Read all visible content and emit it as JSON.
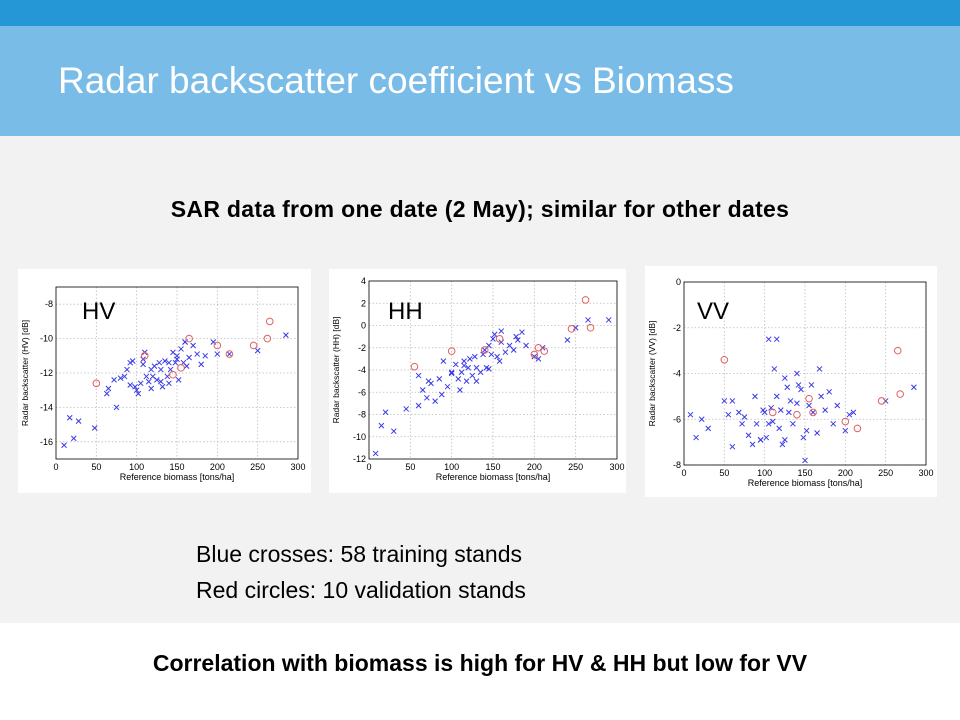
{
  "slide": {
    "title": "Radar backscatter coefficient vs Biomass",
    "subtitle": "SAR data from one date (2 May); similar for other dates",
    "legend": [
      "Blue crosses: 58 training stands",
      "Red circles: 10 validation stands"
    ],
    "conclusion": "Correlation with biomass is high for HV & HH but low for VV"
  },
  "colors": {
    "top_stripe": "#2596d6",
    "title_band": "#79bce8",
    "body": "#f2f2f2",
    "training": "#3a3ae8",
    "validation": "#e06060"
  },
  "chart_data": [
    {
      "type": "scatter",
      "panel_label": "HV",
      "xlabel": "Reference biomass [tons/ha]",
      "ylabel": "Radar backscatter (HV) [dB]",
      "xlim": [
        0,
        300
      ],
      "ylim": [
        -17,
        -7
      ],
      "xticks": [
        0,
        50,
        100,
        150,
        200,
        250,
        300
      ],
      "yticks": [
        -8,
        -10,
        -12,
        -14,
        -16
      ],
      "grid": true,
      "series": [
        {
          "marker": "cross",
          "x": [
            10,
            17,
            28,
            48,
            63,
            65,
            72,
            80,
            85,
            88,
            92,
            95,
            98,
            102,
            105,
            108,
            110,
            112,
            115,
            118,
            120,
            122,
            125,
            128,
            130,
            132,
            135,
            138,
            140,
            142,
            145,
            148,
            150,
            152,
            155,
            158,
            160,
            162,
            165,
            170,
            175,
            180,
            185,
            195,
            200,
            215,
            250,
            285,
            22,
            75,
            118,
            140,
            92,
            160,
            100,
            130,
            108,
            150
          ],
          "y": [
            -16.2,
            -14.6,
            -14.8,
            -15.2,
            -13.2,
            -12.9,
            -12.4,
            -12.3,
            -12.2,
            -11.8,
            -11.4,
            -11.3,
            -12.8,
            -13.2,
            -12.6,
            -11.2,
            -10.8,
            -12.2,
            -12.5,
            -11.8,
            -12.2,
            -11.6,
            -12.4,
            -11.4,
            -11.8,
            -12.8,
            -11.3,
            -12.2,
            -11.4,
            -11.8,
            -10.8,
            -11.4,
            -11.2,
            -12.4,
            -10.6,
            -11.4,
            -10.2,
            -11.6,
            -11.1,
            -10.4,
            -10.9,
            -11.5,
            -11.0,
            -10.2,
            -10.9,
            -10.9,
            -10.7,
            -9.8,
            -15.8,
            -14.0,
            -12.9,
            -12.6,
            -12.7,
            -10.2,
            -13.0,
            -12.5,
            -11.5,
            -11.0
          ]
        },
        {
          "marker": "circle",
          "x": [
            50,
            110,
            145,
            155,
            165,
            200,
            215,
            245,
            262,
            265
          ],
          "y": [
            -12.6,
            -11.0,
            -12.1,
            -11.7,
            -10.0,
            -10.4,
            -10.9,
            -10.4,
            -10.0,
            -9.0
          ]
        }
      ]
    },
    {
      "type": "scatter",
      "panel_label": "HH",
      "xlabel": "Reference biomass [tons/ha]",
      "ylabel": "Radar backscatter (HH) [dB]",
      "xlim": [
        0,
        300
      ],
      "ylim": [
        -12,
        4
      ],
      "xticks": [
        0,
        50,
        100,
        150,
        200,
        250,
        300
      ],
      "yticks": [
        4,
        2,
        0,
        -2,
        -4,
        -6,
        -8,
        -10,
        -12
      ],
      "grid": true,
      "series": [
        {
          "marker": "cross",
          "x": [
            8,
            15,
            20,
            30,
            45,
            60,
            65,
            70,
            75,
            80,
            85,
            90,
            95,
            100,
            105,
            108,
            110,
            112,
            115,
            118,
            120,
            125,
            128,
            130,
            135,
            140,
            142,
            145,
            148,
            150,
            152,
            155,
            158,
            160,
            165,
            170,
            175,
            180,
            185,
            190,
            200,
            210,
            240,
            250,
            265,
            290,
            100,
            130,
            145,
            115,
            88,
            60,
            160,
            178,
            205,
            72,
            138,
            122
          ],
          "y": [
            -11.5,
            -9,
            -7.8,
            -9.5,
            -7.5,
            -4.5,
            -5.8,
            -6.5,
            -5.2,
            -6.8,
            -4.8,
            -3.2,
            -5.5,
            -4.2,
            -3.5,
            -4.8,
            -5.8,
            -4.2,
            -3.2,
            -5.0,
            -3.8,
            -4.5,
            -2.8,
            -3.8,
            -4.2,
            -2.2,
            -3.8,
            -1.8,
            -2.6,
            -1.2,
            -0.8,
            -2.8,
            -3.2,
            -1.5,
            -2.4,
            -1.8,
            -2.2,
            -1.3,
            -0.6,
            -1.8,
            -2.8,
            -2.0,
            -1.3,
            -0.2,
            0.5,
            0.5,
            -4.3,
            -5.0,
            -3.9,
            -3.6,
            -6.2,
            -7.2,
            -0.5,
            -1.0,
            -3.0,
            -5.0,
            -2.6,
            -3.0
          ]
        },
        {
          "marker": "circle",
          "x": [
            55,
            100,
            140,
            158,
            200,
            205,
            212,
            245,
            262,
            268
          ],
          "y": [
            -3.7,
            -2.3,
            -2.2,
            -1.2,
            -2.6,
            -2.0,
            -2.3,
            -0.3,
            2.3,
            -0.2
          ]
        }
      ]
    },
    {
      "type": "scatter",
      "panel_label": "VV",
      "xlabel": "Reference biomass [tons/ha]",
      "ylabel": "Radar backscatter (VV) [dB]",
      "xlim": [
        0,
        300
      ],
      "ylim": [
        -8,
        0
      ],
      "xticks": [
        0,
        50,
        100,
        150,
        200,
        250,
        300
      ],
      "yticks": [
        0,
        -2,
        -4,
        -6,
        -8
      ],
      "grid": true,
      "series": [
        {
          "marker": "cross",
          "x": [
            8,
            15,
            22,
            30,
            50,
            55,
            60,
            68,
            72,
            75,
            80,
            85,
            90,
            95,
            98,
            100,
            102,
            105,
            108,
            110,
            112,
            115,
            118,
            120,
            122,
            125,
            128,
            130,
            132,
            135,
            140,
            142,
            145,
            148,
            150,
            152,
            155,
            158,
            160,
            165,
            170,
            175,
            180,
            185,
            190,
            200,
            205,
            210,
            250,
            285,
            105,
            125,
            88,
            140,
            60,
            95,
            168,
            115
          ],
          "y": [
            -5.8,
            -6.8,
            -6.0,
            -6.4,
            -5.2,
            -5.8,
            -5.2,
            -5.7,
            -6.2,
            -5.9,
            -6.7,
            -7.1,
            -6.2,
            -6.9,
            -5.6,
            -5.7,
            -6.8,
            -6.2,
            -5.5,
            -6.1,
            -3.8,
            -5.0,
            -6.4,
            -5.6,
            -7.1,
            -6.9,
            -4.6,
            -5.7,
            -5.2,
            -6.2,
            -5.3,
            -4.5,
            -4.7,
            -6.8,
            -7.8,
            -6.5,
            -5.4,
            -4.5,
            -5.7,
            -6.6,
            -5.0,
            -5.6,
            -4.8,
            -6.2,
            -5.4,
            -6.5,
            -5.8,
            -5.7,
            -5.2,
            -4.6,
            -2.5,
            -4.2,
            -5.0,
            -4.0,
            -7.2,
            -6.9,
            -3.8,
            -2.5
          ]
        },
        {
          "marker": "circle",
          "x": [
            50,
            110,
            140,
            155,
            160,
            200,
            215,
            245,
            265,
            268
          ],
          "y": [
            -3.4,
            -5.7,
            -5.8,
            -5.1,
            -5.7,
            -6.1,
            -6.4,
            -5.2,
            -3.0,
            -4.9
          ]
        }
      ]
    }
  ]
}
